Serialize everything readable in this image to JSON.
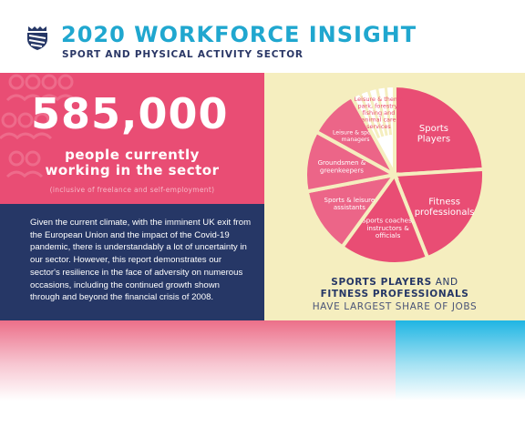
{
  "header": {
    "title": "2020 WORKFORCE INSIGHT",
    "subtitle": "SPORT AND PHYSICAL ACTIVITY SECTOR"
  },
  "stats": {
    "number": "585,000",
    "line1": "people currently",
    "line2": "working in the sector",
    "note": "(inclusive of freelance and self-employment)"
  },
  "body_text": "Given the current climate, with the imminent UK exit from the European Union and the impact of the Covid-19 pandemic, there is understandably a lot of uncertainty in our sector. However, this report demonstrates our sector's resilience in the face of adversity on numerous occasions, including the continued growth shown through and beyond the financial crisis of 2008.",
  "caption": {
    "part1": "SPORTS PLAYERS",
    "part2": " AND",
    "part3": "FITNESS PROFESSIONALS",
    "part4": "HAVE LARGEST SHARE OF JOBS"
  },
  "chart_data": {
    "type": "pie",
    "slices": [
      {
        "label": "Sports Players",
        "value": 24
      },
      {
        "label": "Fitness professionals",
        "value": 20
      },
      {
        "label": "Sports coaches, instructors & officials",
        "value": 16
      },
      {
        "label": "Sports & leisure assistants",
        "value": 12
      },
      {
        "label": "Groundsmen & greenkeepers",
        "value": 11
      },
      {
        "label": "Leisure & sports managers",
        "value": 9
      },
      {
        "label": "Leisure & theme park, forestry, fishing and animal care services",
        "value": 8
      }
    ]
  },
  "colors": {
    "pink": "#e94d74",
    "navy": "#263766",
    "cream": "#f5eebf",
    "teal": "#20a7cf",
    "cyan": "#1fb5e3"
  }
}
